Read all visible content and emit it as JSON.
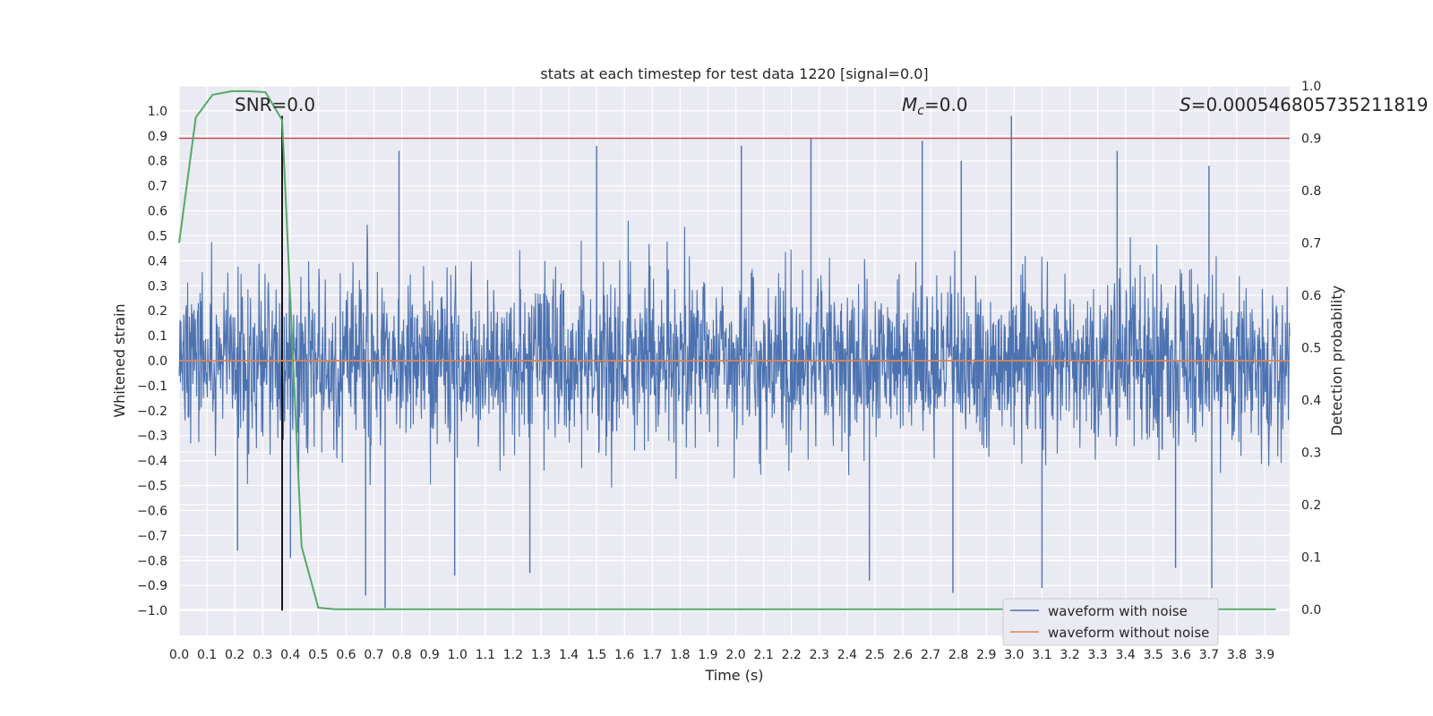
{
  "chart_data": {
    "type": "line",
    "title": "stats at each timestep for test data 1220 [signal=0.0]",
    "xlabel": "Time (s)",
    "ylabel": "Whitened strain",
    "y2label": "Detection probability",
    "xlim": [
      0.0,
      3.99
    ],
    "ylim": [
      -1.1,
      1.1
    ],
    "y2lim": [
      -0.05,
      1.0
    ],
    "x_ticks": [
      "0.0",
      "0.1",
      "0.2",
      "0.3",
      "0.4",
      "0.5",
      "0.6",
      "0.7",
      "0.8",
      "0.9",
      "1.0",
      "1.1",
      "1.2",
      "1.3",
      "1.4",
      "1.5",
      "1.6",
      "1.7",
      "1.8",
      "1.9",
      "2.0",
      "2.1",
      "2.2",
      "2.3",
      "2.4",
      "2.5",
      "2.6",
      "2.7",
      "2.8",
      "2.9",
      "3.0",
      "3.1",
      "3.2",
      "3.3",
      "3.4",
      "3.5",
      "3.6",
      "3.7",
      "3.8",
      "3.9"
    ],
    "y_ticks": [
      "1.0",
      "0.9",
      "0.8",
      "0.7",
      "0.6",
      "0.5",
      "0.4",
      "0.3",
      "0.2",
      "0.1",
      "0.0",
      "−0.1",
      "−0.2",
      "−0.3",
      "−0.4",
      "−0.5",
      "−0.6",
      "−0.7",
      "−0.8",
      "−0.9",
      "−1.0"
    ],
    "y2_ticks": [
      "1.0",
      "0.9",
      "0.8",
      "0.7",
      "0.6",
      "0.5",
      "0.4",
      "0.3",
      "0.2",
      "0.1",
      "0.0"
    ],
    "annotations": {
      "snr": "SNR=0.0",
      "mc": "M",
      "mc_sub": "c",
      "mc_value": "=0.0",
      "s": "S",
      "s_value": "=0.000546805735211819"
    },
    "legend": {
      "placement": "lower-right",
      "entries": [
        "waveform with noise",
        "waveform without noise"
      ]
    },
    "series": [
      {
        "name": "waveform with noise",
        "color": "#4c72b0",
        "axis": "left",
        "description_kind": "dense noise",
        "x_range": [
          0.0,
          3.99
        ],
        "amplitude_typical": 0.55,
        "peaks": [
          {
            "x": 0.79,
            "y": 0.84
          },
          {
            "x": 1.5,
            "y": 0.86
          },
          {
            "x": 2.02,
            "y": 0.86
          },
          {
            "x": 2.27,
            "y": 0.89
          },
          {
            "x": 2.67,
            "y": 0.88
          },
          {
            "x": 2.81,
            "y": 0.8
          },
          {
            "x": 2.99,
            "y": 0.98
          },
          {
            "x": 3.37,
            "y": 0.84
          },
          {
            "x": 3.7,
            "y": 0.78
          },
          {
            "x": 0.74,
            "y": -0.99
          },
          {
            "x": 0.67,
            "y": -0.94
          },
          {
            "x": 2.78,
            "y": -0.93
          },
          {
            "x": 3.1,
            "y": -0.91
          },
          {
            "x": 3.71,
            "y": -0.91
          },
          {
            "x": 0.99,
            "y": -0.86
          },
          {
            "x": 1.26,
            "y": -0.85
          },
          {
            "x": 2.48,
            "y": -0.88
          },
          {
            "x": 3.58,
            "y": -0.83
          },
          {
            "x": 0.21,
            "y": -0.76
          },
          {
            "x": 0.4,
            "y": -0.79
          }
        ]
      },
      {
        "name": "waveform without noise",
        "color": "#dd8452",
        "axis": "left",
        "x": [
          0.0,
          3.99
        ],
        "y": [
          0.0,
          0.0
        ]
      },
      {
        "name": "",
        "color": "#55a868",
        "axis": "right",
        "x": [
          0.0,
          0.06,
          0.12,
          0.19,
          0.25,
          0.31,
          0.37,
          0.44,
          0.5,
          0.56,
          0.62,
          0.69,
          0.75,
          3.94
        ],
        "y": [
          0.7,
          0.94,
          0.983,
          0.99,
          0.99,
          0.988,
          0.935,
          0.12,
          0.003,
          0.0,
          0.0,
          0.0,
          0.0,
          0.0
        ]
      }
    ],
    "reference_lines": [
      {
        "kind": "horizontal",
        "axis": "right",
        "value": 0.9,
        "color": "#c44e52"
      },
      {
        "kind": "vertical",
        "x": 0.37,
        "y_from": -1.0,
        "y_to": 0.98,
        "color": "#000000"
      }
    ]
  }
}
